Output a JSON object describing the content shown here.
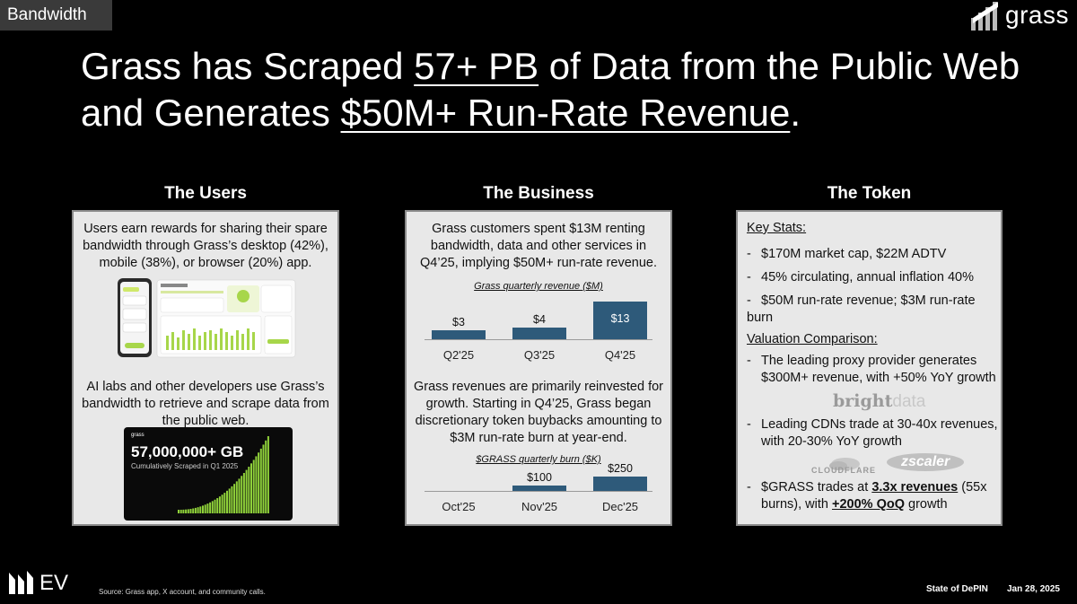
{
  "header": {
    "section": "Bandwidth",
    "logo_text": "grass"
  },
  "headline": {
    "p1": "Grass has Scraped ",
    "u1": "57+ PB",
    "p2": " of Data from the Public Web and Generates ",
    "u2": "$50M+ Run-Rate Revenue",
    "p3": "."
  },
  "columns": {
    "users": {
      "title": "The Users"
    },
    "business": {
      "title": "The Business"
    },
    "token": {
      "title": "The Token"
    }
  },
  "users": {
    "text1": "Users earn rewards for sharing their spare bandwidth through Grass’s desktop (42%), mobile (38%), or browser (20%) app.",
    "text2": "AI labs and other developers use Grass’s bandwidth to retrieve and scrape data from the public web.",
    "scrape_figure": {
      "brand": "grass",
      "value": "57,000,000+ GB",
      "caption": "Cumulatively Scraped in Q1 2025"
    }
  },
  "business": {
    "text1": "Grass customers spent $13M renting bandwidth, data and other services in Q4’25, implying $50M+ run-rate revenue.",
    "text2": "Grass revenues are primarily reinvested for growth. Starting in Q4’25, Grass began discretionary token buybacks amounting to $3M run-rate burn at year-end."
  },
  "chart_data": [
    {
      "type": "bar",
      "title": "Grass quarterly revenue ($M)",
      "categories": [
        "Q2'25",
        "Q3'25",
        "Q4'25"
      ],
      "values": [
        3,
        4,
        13
      ],
      "labels": [
        "$3",
        "$4",
        "$13"
      ],
      "ylim": [
        0,
        13
      ],
      "bar_color": "#2e5a7a"
    },
    {
      "type": "bar",
      "title": "$GRASS quarterly burn ($K)",
      "categories": [
        "Oct'25",
        "Nov'25",
        "Dec'25"
      ],
      "values": [
        0,
        100,
        250
      ],
      "labels": [
        "",
        "$100",
        "$250"
      ],
      "ylim": [
        0,
        250
      ],
      "bar_color": "#2e5a7a"
    }
  ],
  "token": {
    "key_stats_heading": "Key Stats:",
    "key_stats": [
      "$170M market cap, $22M ADTV",
      "45% circulating, annual inflation 40%",
      "$50M run-rate revenue; $3M run-rate burn"
    ],
    "valuation_heading": "Valuation Comparison:",
    "valuation": [
      {
        "line1": "The leading proxy provider generates",
        "line2": "$300M+ revenue, with +50% YoY growth"
      },
      {
        "line1": "Leading CDNs trade at 30-40x revenues,",
        "line2": "with 20-30% YoY growth"
      }
    ],
    "grass_valuation": {
      "a": "$GRASS trades at ",
      "b": "3.3x revenues",
      "c": " (55x",
      "d": "burns), with ",
      "e": "+200% QoQ",
      "f": " growth"
    },
    "logos": {
      "bright_a": "bright",
      "bright_b": "data",
      "cloudflare": "CLOUDFLARE",
      "zscaler": "zscaler"
    }
  },
  "footer": {
    "source": "Source: Grass app, X account, and community calls.",
    "report": "State of DePIN",
    "date": "Jan 28, 2025",
    "ev_text": "EV"
  }
}
